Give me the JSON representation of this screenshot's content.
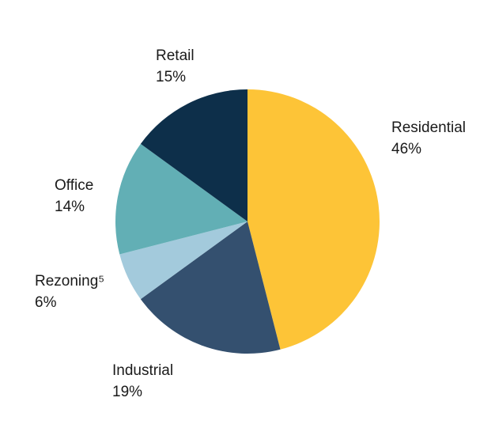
{
  "chart_data": {
    "type": "pie",
    "title": "",
    "slices": [
      {
        "label": "Residential",
        "value": 46,
        "value_text": "46%",
        "color": "#FDC437"
      },
      {
        "label": "Industrial",
        "value": 19,
        "value_text": "19%",
        "color": "#34506F"
      },
      {
        "label": "Rezoning⁵",
        "value": 6,
        "value_text": "6%",
        "color": "#A3CADC"
      },
      {
        "label": "Office",
        "value": 14,
        "value_text": "14%",
        "color": "#62AFB5"
      },
      {
        "label": "Retail",
        "value": 15,
        "value_text": "15%",
        "color": "#0D2F4A"
      }
    ],
    "start_angle_deg": 0,
    "direction": "clockwise",
    "legend": "none"
  }
}
